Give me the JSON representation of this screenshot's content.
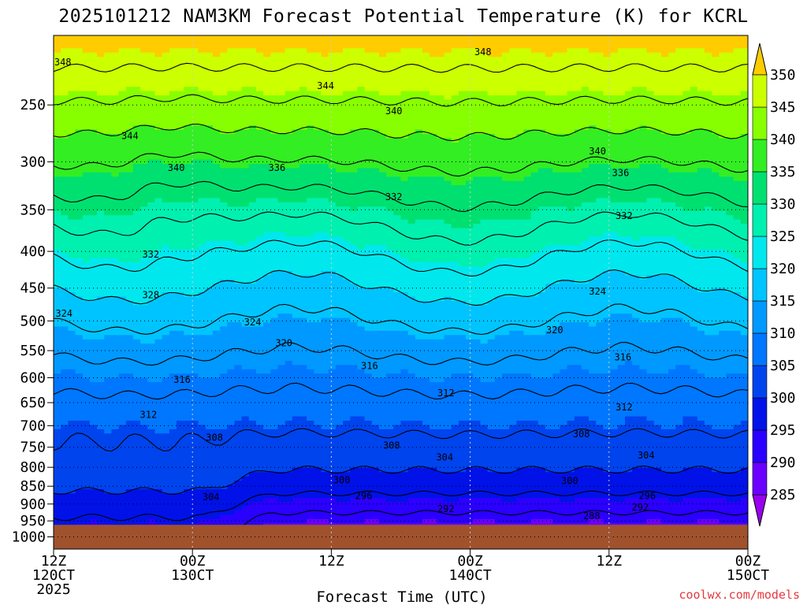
{
  "chart_data": {
    "type": "heatmap",
    "title": "2025101212 NAM3KM Forecast Potential Temperature (K) for KCRL",
    "xlabel": "Forecast Time (UTC)",
    "ylabel": "",
    "credit": "coolwx.com/models",
    "x_ticks": [
      {
        "hour": 0,
        "line1": "12Z",
        "line2": "120CT",
        "line3": "2025"
      },
      {
        "hour": 12,
        "line1": "00Z",
        "line2": "130CT",
        "line3": ""
      },
      {
        "hour": 24,
        "line1": "12Z",
        "line2": "",
        "line3": ""
      },
      {
        "hour": 36,
        "line1": "00Z",
        "line2": "140CT",
        "line3": ""
      },
      {
        "hour": 48,
        "line1": "12Z",
        "line2": "",
        "line3": ""
      },
      {
        "hour": 60,
        "line1": "00Z",
        "line2": "150CT",
        "line3": ""
      }
    ],
    "xlim": [
      0,
      60
    ],
    "y_ticks": [
      "250",
      "300",
      "350",
      "400",
      "450",
      "500",
      "550",
      "600",
      "650",
      "700",
      "750",
      "800",
      "850",
      "900",
      "950",
      "1000"
    ],
    "y_tick_values": [
      250,
      300,
      350,
      400,
      450,
      500,
      550,
      600,
      650,
      700,
      750,
      800,
      850,
      900,
      950,
      1000
    ],
    "ylim": [
      200,
      1040
    ],
    "y_scale": "log-pressure",
    "grid": true,
    "colorbar": {
      "labels": [
        "285",
        "290",
        "295",
        "300",
        "305",
        "310",
        "315",
        "320",
        "325",
        "330",
        "335",
        "340",
        "345",
        "350"
      ],
      "levels": [
        285,
        290,
        295,
        300,
        305,
        310,
        315,
        320,
        325,
        330,
        335,
        340,
        345,
        350
      ],
      "colors": [
        "#9900ee",
        "#6a00ff",
        "#2a00ff",
        "#0012e8",
        "#0044ee",
        "#0077ff",
        "#0099ff",
        "#00c4ff",
        "#00e8ee",
        "#00f0b0",
        "#00e070",
        "#33ee22",
        "#88ff00",
        "#ccff00",
        "#ffee00",
        "#ffcc00"
      ],
      "placement": "right"
    },
    "contour_levels": [
      288,
      292,
      296,
      300,
      304,
      308,
      312,
      316,
      320,
      324,
      328,
      332,
      336,
      340,
      344,
      348
    ],
    "contour_labels": [
      {
        "text": "348",
        "hour": 0.8,
        "p": 218
      },
      {
        "text": "348",
        "hour": 37.1,
        "p": 211
      },
      {
        "text": "344",
        "hour": 23.5,
        "p": 235
      },
      {
        "text": "344",
        "hour": 6.6,
        "p": 276
      },
      {
        "text": "340",
        "hour": 29.4,
        "p": 255
      },
      {
        "text": "340",
        "hour": 10.6,
        "p": 306
      },
      {
        "text": "340",
        "hour": 47.0,
        "p": 290
      },
      {
        "text": "336",
        "hour": 19.3,
        "p": 306
      },
      {
        "text": "336",
        "hour": 49.0,
        "p": 311
      },
      {
        "text": "332",
        "hour": 29.4,
        "p": 336
      },
      {
        "text": "332",
        "hour": 8.4,
        "p": 404
      },
      {
        "text": "332",
        "hour": 49.3,
        "p": 357
      },
      {
        "text": "328",
        "hour": 8.4,
        "p": 460
      },
      {
        "text": "324",
        "hour": 0.9,
        "p": 488
      },
      {
        "text": "324",
        "hour": 17.2,
        "p": 502
      },
      {
        "text": "324",
        "hour": 47.0,
        "p": 455
      },
      {
        "text": "320",
        "hour": 19.9,
        "p": 537
      },
      {
        "text": "320",
        "hour": 43.3,
        "p": 515
      },
      {
        "text": "316",
        "hour": 11.1,
        "p": 604
      },
      {
        "text": "316",
        "hour": 27.3,
        "p": 578
      },
      {
        "text": "316",
        "hour": 49.2,
        "p": 562
      },
      {
        "text": "312",
        "hour": 8.2,
        "p": 676
      },
      {
        "text": "312",
        "hour": 33.9,
        "p": 630
      },
      {
        "text": "312",
        "hour": 49.3,
        "p": 660
      },
      {
        "text": "308",
        "hour": 13.9,
        "p": 727
      },
      {
        "text": "308",
        "hour": 29.2,
        "p": 746
      },
      {
        "text": "308",
        "hour": 45.6,
        "p": 719
      },
      {
        "text": "304",
        "hour": 33.8,
        "p": 775
      },
      {
        "text": "304",
        "hour": 51.2,
        "p": 770
      },
      {
        "text": "304",
        "hour": 13.6,
        "p": 880
      },
      {
        "text": "300",
        "hour": 24.9,
        "p": 834
      },
      {
        "text": "300",
        "hour": 44.6,
        "p": 836
      },
      {
        "text": "296",
        "hour": 26.8,
        "p": 877
      },
      {
        "text": "296",
        "hour": 51.3,
        "p": 877
      },
      {
        "text": "292",
        "hour": 33.9,
        "p": 914
      },
      {
        "text": "292",
        "hour": 50.7,
        "p": 909
      },
      {
        "text": "288",
        "hour": 46.5,
        "p": 935
      }
    ]
  }
}
